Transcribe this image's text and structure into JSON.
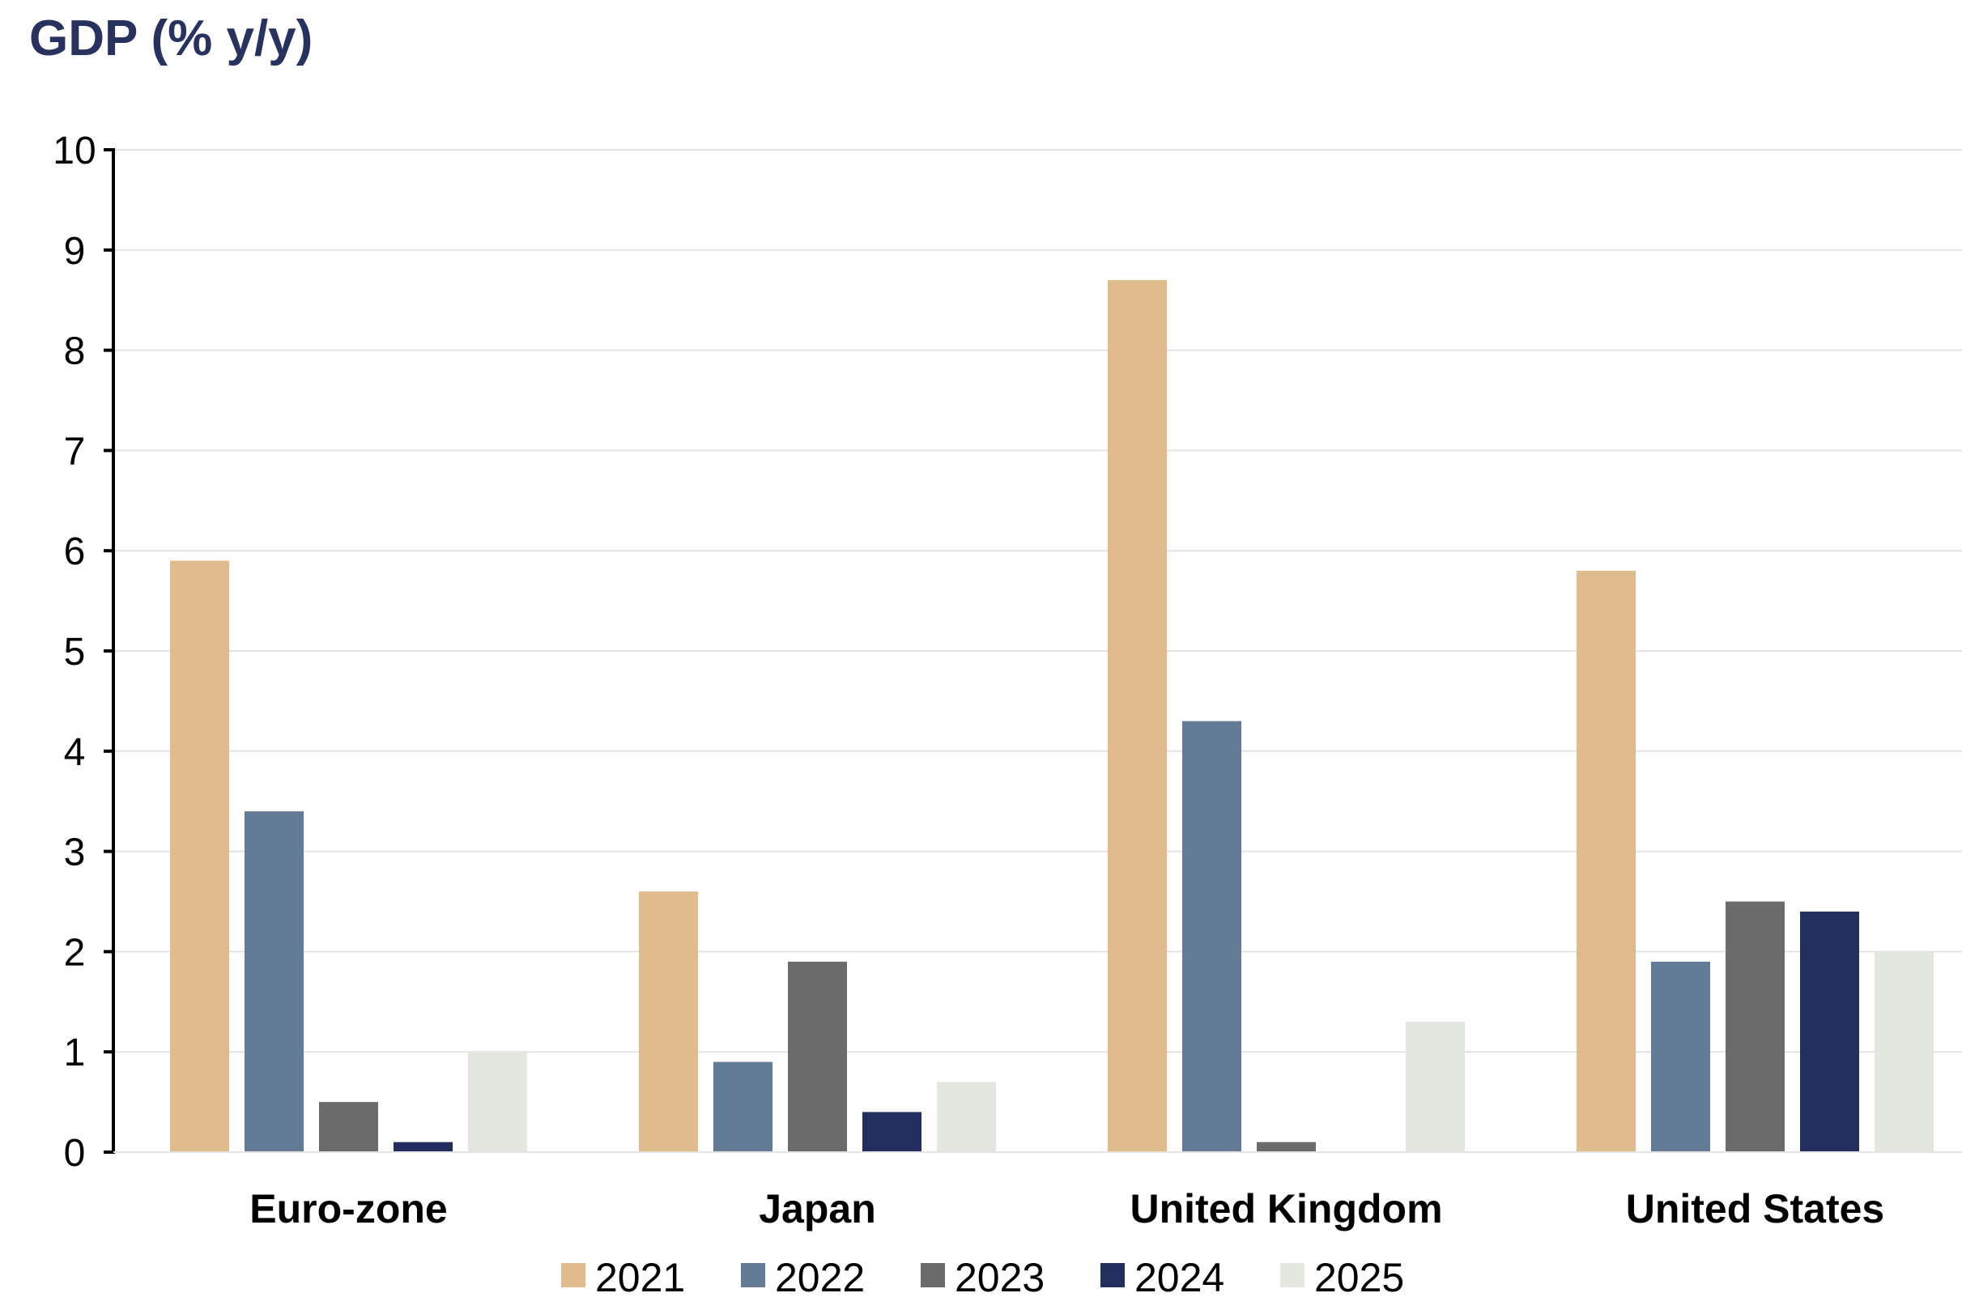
{
  "chart_data": {
    "type": "bar",
    "title": "GDP (% y/y)",
    "xlabel": "",
    "ylabel": "",
    "ylim": [
      0,
      10
    ],
    "yticks": [
      "0",
      "1",
      "2",
      "3",
      "4",
      "5",
      "6",
      "7",
      "8",
      "9",
      "10"
    ],
    "categories": [
      "Euro-zone",
      "Japan",
      "United Kingdom",
      "United States"
    ],
    "series": [
      {
        "name": "2021",
        "color": "#e0bb8c",
        "values": [
          5.9,
          2.6,
          8.7,
          5.8
        ]
      },
      {
        "name": "2022",
        "color": "#647b97",
        "values": [
          3.4,
          0.9,
          4.3,
          1.9
        ]
      },
      {
        "name": "2023",
        "color": "#6b6b6b",
        "values": [
          0.5,
          1.9,
          0.1,
          2.5
        ]
      },
      {
        "name": "2024",
        "color": "#232e5f",
        "values": [
          0.1,
          0.4,
          0.0,
          2.4
        ]
      },
      {
        "name": "2025",
        "color": "#e4e6e0",
        "values": [
          1.0,
          0.7,
          1.3,
          2.0
        ]
      }
    ],
    "grid": true,
    "legend_position": "bottom"
  }
}
